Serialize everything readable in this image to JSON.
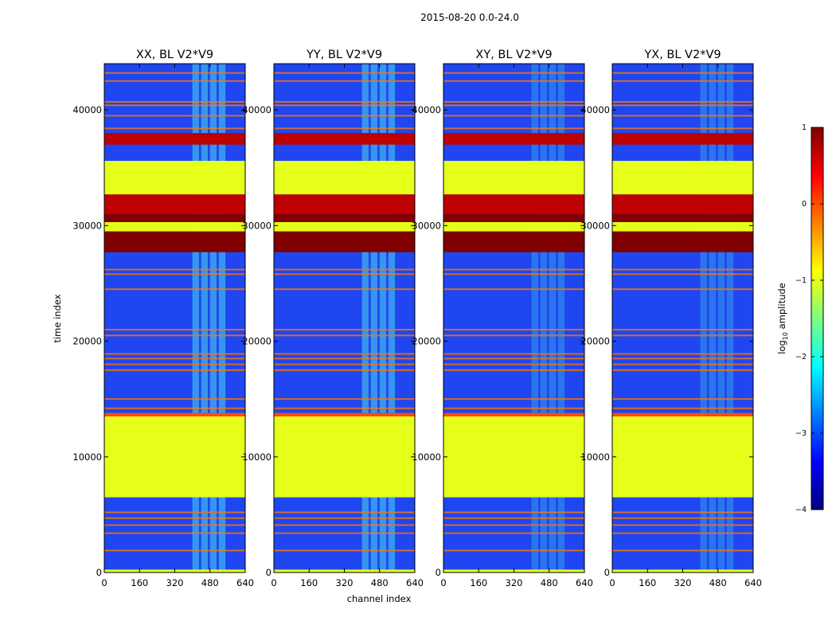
{
  "chart_data": {
    "type": "heatmap",
    "suptitle": "2015-08-20 0.0-24.0",
    "xlabel": "channel index",
    "ylabel": "time index",
    "xlim": [
      0,
      640
    ],
    "ylim": [
      0,
      44000
    ],
    "xticks": [
      0,
      160,
      320,
      480,
      640
    ],
    "xtick_labels": [
      "0",
      "160",
      "320",
      "480",
      "640"
    ],
    "yticks": [
      0,
      10000,
      20000,
      30000,
      40000
    ],
    "ytick_labels": [
      "0",
      "10000",
      "20000",
      "30000",
      "40000"
    ],
    "panels": [
      {
        "title": "XX, BL V2*V9"
      },
      {
        "title": "YY, BL V2*V9"
      },
      {
        "title": "XY, BL V2*V9"
      },
      {
        "title": "YX, BL V2*V9"
      }
    ],
    "colorbar": {
      "label_prefix": "log",
      "label_sub": "10",
      "label_suffix": " amplitude",
      "range": [
        -4,
        1
      ],
      "ticks": [
        1,
        0,
        -1,
        -2,
        -3,
        -4
      ],
      "tick_labels": [
        "1",
        "0",
        "−1",
        "−2",
        "−3",
        "−4"
      ],
      "colormap": "jet"
    },
    "time_bands": [
      {
        "from": 0,
        "to": 250,
        "value": -1.0
      },
      {
        "from": 6500,
        "to": 13500,
        "value": -1.0
      },
      {
        "from": 13500,
        "to": 13800,
        "value": 0.0
      },
      {
        "from": 27700,
        "to": 29500,
        "value": 1.0
      },
      {
        "from": 29500,
        "to": 30300,
        "value": -1.0
      },
      {
        "from": 30300,
        "to": 31000,
        "value": 1.0
      },
      {
        "from": 31000,
        "to": 32700,
        "value": 0.7
      },
      {
        "from": 32700,
        "to": 35600,
        "value": -1.0
      },
      {
        "from": 37000,
        "to": 38000,
        "value": 0.7
      }
    ],
    "flagged_lines": [
      1900,
      3400,
      4100,
      4700,
      5200,
      14200,
      15000,
      17500,
      18000,
      18500,
      18900,
      20500,
      21000,
      24500,
      25800,
      26200,
      38400,
      39500,
      40400,
      40700,
      42500,
      43200
    ],
    "rfi_channel_band": [
      400,
      560
    ]
  }
}
